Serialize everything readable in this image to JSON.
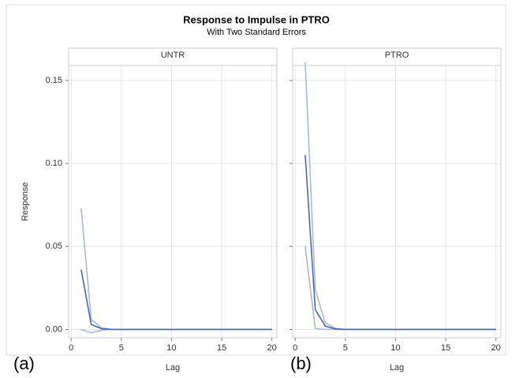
{
  "title": "Response to Impulse in PTRO",
  "subtitle": "With Two Standard Errors",
  "chart_data": [
    {
      "type": "line",
      "title": "UNTR",
      "x_label": "Lag",
      "y_label": "Response",
      "annotation": "(a)",
      "x": [
        1,
        2,
        3,
        4,
        5,
        6,
        7,
        8,
        9,
        10,
        11,
        12,
        13,
        14,
        15,
        16,
        17,
        18,
        19,
        20
      ],
      "series": [
        {
          "color": "#a9b7e0",
          "values": [
            0.073,
            0.006,
            0.001,
            0.0001,
            0,
            0,
            0,
            0,
            0,
            0,
            0,
            0,
            0,
            0,
            0,
            0,
            0,
            0,
            0,
            0
          ]
        },
        {
          "color": "#a9b7e0",
          "values": [
            0,
            -0.002,
            -0.0005,
            0,
            0,
            0,
            0,
            0,
            0,
            0,
            0,
            0,
            0,
            0,
            0,
            0,
            0,
            0,
            0,
            0
          ]
        },
        {
          "color": "#4e68ad",
          "values": [
            0.036,
            0.003,
            0.0005,
            0,
            0,
            0,
            0,
            0,
            0,
            0,
            0,
            0,
            0,
            0,
            0,
            0,
            0,
            0,
            0,
            0
          ]
        }
      ],
      "xlim": [
        -0.25,
        20.5
      ],
      "xticks": [
        0,
        5,
        10,
        15,
        20
      ],
      "ylim": [
        -0.005,
        0.159
      ],
      "yticks": [
        {
          "value": 0,
          "label": "0.00"
        },
        {
          "value": 0.05,
          "label": "0.05"
        },
        {
          "value": 0.1,
          "label": "0.10"
        },
        {
          "value": 0.15,
          "label": "0.15"
        }
      ],
      "ytick_labels": true,
      "grid": true
    },
    {
      "type": "line",
      "title": "PTRO",
      "x_label": "Lag",
      "annotation": "(b)",
      "x": [
        1,
        2,
        3,
        4,
        5,
        6,
        7,
        8,
        9,
        10,
        11,
        12,
        13,
        14,
        15,
        16,
        17,
        18,
        19,
        20
      ],
      "series": [
        {
          "color": "#a9b7e0",
          "values": [
            0.161,
            0.024,
            0.004,
            0.0006,
            0,
            0,
            0,
            0,
            0,
            0,
            0,
            0,
            0,
            0,
            0,
            0,
            0,
            0,
            0,
            0
          ]
        },
        {
          "color": "#a9b7e0",
          "values": [
            0.05,
            0.0005,
            0,
            0,
            0,
            0,
            0,
            0,
            0,
            0,
            0,
            0,
            0,
            0,
            0,
            0,
            0,
            0,
            0,
            0
          ]
        },
        {
          "color": "#4e68ad",
          "values": [
            0.105,
            0.012,
            0.002,
            0.0003,
            0,
            0,
            0,
            0,
            0,
            0,
            0,
            0,
            0,
            0,
            0,
            0,
            0,
            0,
            0,
            0
          ]
        }
      ],
      "xlim": [
        -0.25,
        20.5
      ],
      "xticks": [
        0,
        5,
        10,
        15,
        20
      ],
      "ylim": [
        -0.005,
        0.159
      ],
      "yticks": [
        {
          "value": 0,
          "label": "0.00"
        },
        {
          "value": 0.05,
          "label": "0.05"
        },
        {
          "value": 0.1,
          "label": "0.10"
        },
        {
          "value": 0.15,
          "label": "0.15"
        }
      ],
      "ytick_labels": false,
      "grid": true
    }
  ]
}
